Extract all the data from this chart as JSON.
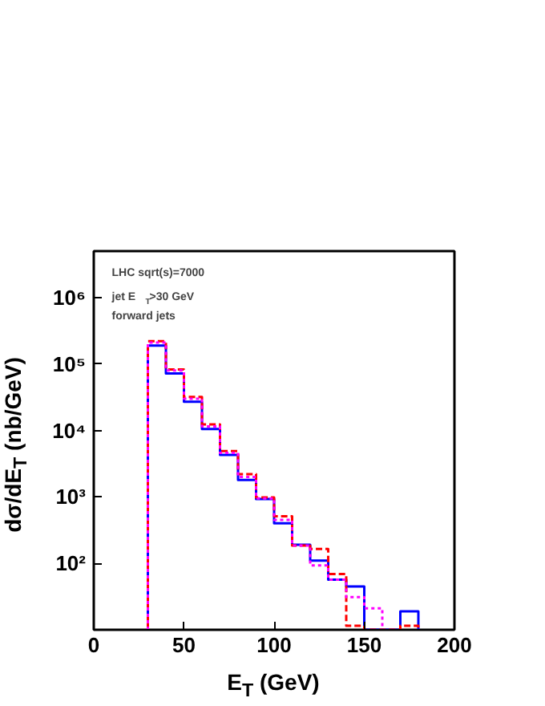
{
  "chart_data": {
    "type": "histogram",
    "xlabel": "E$_{T}$ (GeV)",
    "ylabel": "dσ/dE$_{T}$ (nb/GeV)",
    "annotations": [
      "LHC sqrt(s)=7000",
      "jet  E$_{T}$>30 GeV",
      "forward jets"
    ],
    "bins": [
      30,
      40,
      50,
      60,
      70,
      80,
      90,
      100,
      110,
      120,
      130,
      140,
      150,
      160,
      170,
      180
    ],
    "series": [
      {
        "color": "#0000ff",
        "line_style": "solid",
        "values": [
          190000,
          72000,
          27000,
          10500,
          4300,
          1800,
          930,
          400,
          190,
          110,
          57,
          45,
          null,
          null,
          19
        ]
      },
      {
        "color": "#ff0000",
        "line_style": "dashed",
        "values": [
          220000,
          83000,
          32000,
          12300,
          4900,
          2200,
          980,
          510,
          185,
          165,
          69,
          11.5,
          null,
          null,
          11.5
        ]
      },
      {
        "color": "#ff00ff",
        "line_style": "dotted",
        "bins": [
          30,
          40,
          50,
          60,
          70,
          80,
          90,
          100,
          110,
          120,
          130,
          140,
          150,
          160
        ],
        "values": [
          210000,
          80000,
          30000,
          11500,
          4600,
          2000,
          950,
          450,
          185,
          93,
          57,
          31,
          21
        ]
      }
    ],
    "log": "y",
    "xlim": [
      0,
      200
    ],
    "ylim": [
      10,
      5000000
    ],
    "xticks": [
      0,
      50,
      100,
      150,
      200
    ],
    "yticks": [
      {
        "value": 100,
        "label": "10²"
      },
      {
        "value": 1000,
        "label": "10³"
      },
      {
        "value": 10000,
        "label": "10⁴"
      },
      {
        "value": 100000,
        "label": "10⁵"
      },
      {
        "value": 1000000,
        "label": "10⁶"
      }
    ],
    "grid": false
  }
}
